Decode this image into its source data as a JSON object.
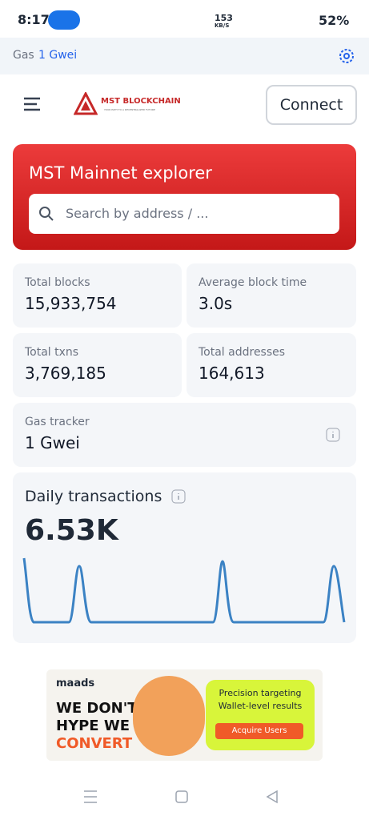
{
  "status_bar": {
    "time": "8:17",
    "net_speed": "153",
    "net_unit": "KB/S",
    "battery": "52%"
  },
  "gas_bar": {
    "label": "Gas",
    "value": "1 Gwei"
  },
  "header": {
    "logo": "MST BLOCKCHAIN",
    "tagline": "YOUR PATH TO A DECENTRALIZED FUTURE",
    "connect": "Connect"
  },
  "hero": {
    "title": "MST Mainnet explorer",
    "search_placeholder": "Search by address / ..."
  },
  "stats": [
    {
      "label": "Total blocks",
      "value": "15,933,754"
    },
    {
      "label": "Average block time",
      "value": "3.0s"
    },
    {
      "label": "Total txns",
      "value": "3,769,185"
    },
    {
      "label": "Total addresses",
      "value": "164,613"
    }
  ],
  "gas_tracker": {
    "label": "Gas tracker",
    "value": "1 Gwei"
  },
  "daily_transactions": {
    "label": "Daily transactions",
    "value": "6.53K"
  },
  "ad": {
    "brand": "maads",
    "headline": [
      "WE DON'T",
      "HYPE WE",
      "CONVERT"
    ],
    "lines": [
      "Precision targeting",
      "Wallet-level results"
    ],
    "button": "Acquire Users"
  }
}
